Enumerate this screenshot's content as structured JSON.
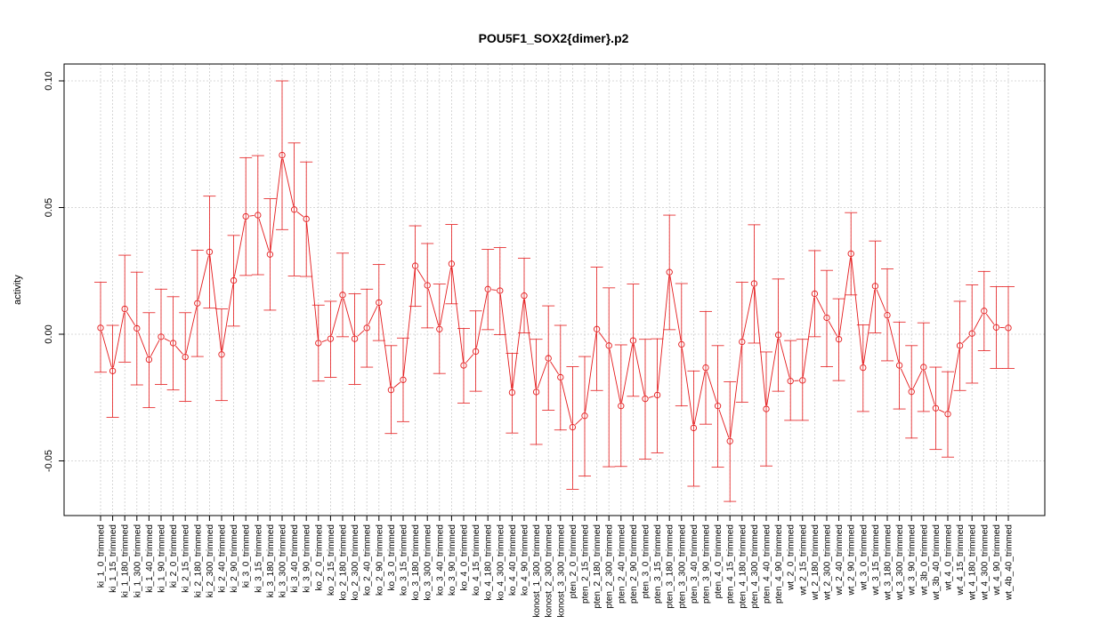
{
  "chart_data": {
    "type": "line",
    "title": "POU5F1_SOX2{dimer}.p2",
    "xlabel": "",
    "ylabel": "activity",
    "ylim": [
      -0.07,
      0.1
    ],
    "yticks": [
      -0.05,
      0.0,
      0.05,
      0.1
    ],
    "ytick_labels": [
      "-0.05",
      "0.00",
      "0.05",
      "0.10"
    ],
    "grid": true,
    "color": "#e41a1c",
    "categories": [
      "ki_1_0_trimmed",
      "ki_1_15_trimmed",
      "ki_1_180_trimmed",
      "ki_1_300_trimmed",
      "ki_1_40_trimmed",
      "ki_1_90_trimmed",
      "ki_2_0_trimmed",
      "ki_2_15_trimmed",
      "ki_2_180_trimmed",
      "ki_2_300_trimmed",
      "ki_2_40_trimmed",
      "ki_2_90_trimmed",
      "ki_3_0_trimmed",
      "ki_3_15_trimmed",
      "ki_3_180_trimmed",
      "ki_3_300_trimmed",
      "ki_3_40_trimmed",
      "ki_3_90_trimmed",
      "ko_2_0_trimmed",
      "ko_2_15_trimmed",
      "ko_2_180_trimmed",
      "ko_2_300_trimmed",
      "ko_2_40_trimmed",
      "ko_2_90_trimmed",
      "ko_3_0_trimmed",
      "ko_3_15_trimmed",
      "ko_3_180_trimmed",
      "ko_3_300_trimmed",
      "ko_3_40_trimmed",
      "ko_3_90_trimmed",
      "ko_4_0_trimmed",
      "ko_4_15_trimmed",
      "ko_4_180_trimmed",
      "ko_4_300_trimmed",
      "ko_4_40_trimmed",
      "ko_4_90_trimmed",
      "konost_1_300_trimmed",
      "konost_2_300_trimmed",
      "konost_3_300_trimmed",
      "pten_2_0_trimmed",
      "pten_2_15_trimmed",
      "pten_2_180_trimmed",
      "pten_2_300_trimmed",
      "pten_2_40_trimmed",
      "pten_2_90_trimmed",
      "pten_3_0_trimmed",
      "pten_3_15_trimmed",
      "pten_3_180_trimmed",
      "pten_3_300_trimmed",
      "pten_3_40_trimmed",
      "pten_3_90_trimmed",
      "pten_4_0_trimmed",
      "pten_4_15_trimmed",
      "pten_4_180_trimmed",
      "pten_4_300_trimmed",
      "pten_4_40_trimmed",
      "pten_4_90_trimmed",
      "wt_2_0_trimmed",
      "wt_2_15_trimmed",
      "wt_2_180_trimmed",
      "wt_2_300_trimmed",
      "wt_2_40_trimmed",
      "wt_2_90_trimmed",
      "wt_3_0_trimmed",
      "wt_3_15_trimmed",
      "wt_3_180_trimmed",
      "wt_3_300_trimmed",
      "wt_3_90_trimmed",
      "wt_3b_0_trimmed",
      "wt_3b_40_trimmed",
      "wt_4_0_trimmed",
      "wt_4_15_trimmed",
      "wt_4_180_trimmed",
      "wt_4_300_trimmed",
      "wt_4_90_trimmed",
      "wt_4b_40_trimmed"
    ],
    "values": [
      0.0025,
      -0.0145,
      0.01,
      0.0023,
      -0.01,
      -0.001,
      -0.0035,
      -0.009,
      0.0122,
      0.0325,
      -0.008,
      0.0212,
      0.0465,
      0.047,
      0.0315,
      0.0707,
      0.0492,
      0.0455,
      -0.0035,
      -0.0018,
      0.0155,
      -0.0018,
      0.0025,
      0.0125,
      -0.022,
      -0.018,
      0.027,
      0.0193,
      0.002,
      0.0278,
      -0.0123,
      -0.0068,
      0.0178,
      0.0172,
      -0.023,
      0.0152,
      -0.0228,
      -0.0095,
      -0.017,
      -0.0367,
      -0.0322,
      0.002,
      -0.0045,
      -0.0283,
      -0.0025,
      -0.0255,
      -0.024,
      0.0245,
      -0.004,
      -0.037,
      -0.0132,
      -0.0283,
      -0.0422,
      -0.003,
      0.02,
      -0.0295,
      -0.0003,
      -0.0185,
      -0.0182,
      0.016,
      0.0065,
      -0.002,
      0.0318,
      -0.0132,
      0.019,
      0.0075,
      -0.0123,
      -0.0227,
      -0.013,
      -0.0292,
      -0.0315,
      -0.0045,
      0.0003,
      0.0092,
      0.0027,
      0.0025
    ],
    "err_upper": [
      0.0205,
      0.0035,
      0.0312,
      0.0245,
      0.0085,
      0.0178,
      0.0148,
      0.0085,
      0.0332,
      0.0545,
      0.01,
      0.039,
      0.0697,
      0.0705,
      0.0535,
      0.1,
      0.0755,
      0.068,
      0.0115,
      0.013,
      0.032,
      0.016,
      0.0178,
      0.0275,
      -0.0045,
      -0.0015,
      0.0428,
      0.0358,
      0.0198,
      0.0433,
      0.0023,
      0.0092,
      0.0335,
      0.0342,
      -0.0075,
      0.03,
      -0.002,
      0.0112,
      0.0035,
      -0.0128,
      -0.0088,
      0.0265,
      0.0183,
      -0.0042,
      0.0198,
      -0.002,
      -0.0018,
      0.047,
      0.02,
      -0.0145,
      0.009,
      -0.0045,
      -0.0188,
      0.0205,
      0.0432,
      -0.007,
      0.0218,
      -0.0025,
      -0.002,
      0.033,
      0.0252,
      0.014,
      0.048,
      0.0037,
      0.0368,
      0.0258,
      0.0048,
      -0.0045,
      0.0045,
      -0.013,
      -0.0148,
      0.013,
      0.0195,
      0.0248,
      0.0188,
      0.0188
    ],
    "err_lower": [
      -0.015,
      -0.0328,
      -0.011,
      -0.02,
      -0.029,
      -0.0198,
      -0.022,
      -0.0265,
      -0.0088,
      0.0103,
      -0.0262,
      0.0032,
      0.0232,
      0.0235,
      0.0095,
      0.0413,
      0.023,
      0.0228,
      -0.0185,
      -0.017,
      -0.001,
      -0.0198,
      -0.013,
      -0.0025,
      -0.0392,
      -0.0345,
      0.011,
      0.0025,
      -0.0155,
      0.012,
      -0.0272,
      -0.0225,
      0.0018,
      -0.0002,
      -0.039,
      0.0005,
      -0.0435,
      -0.03,
      -0.0378,
      -0.0612,
      -0.056,
      -0.0222,
      -0.0523,
      -0.0522,
      -0.0245,
      -0.0493,
      -0.0468,
      0.0018,
      -0.0283,
      -0.06,
      -0.0355,
      -0.0525,
      -0.066,
      -0.0268,
      -0.0035,
      -0.052,
      -0.0225,
      -0.034,
      -0.034,
      -0.001,
      -0.0128,
      -0.0183,
      0.0155,
      -0.0305,
      0.0005,
      -0.0105,
      -0.0295,
      -0.041,
      -0.0305,
      -0.0455,
      -0.0485,
      -0.0222,
      -0.0193,
      -0.0065,
      -0.0135,
      -0.0135
    ]
  }
}
